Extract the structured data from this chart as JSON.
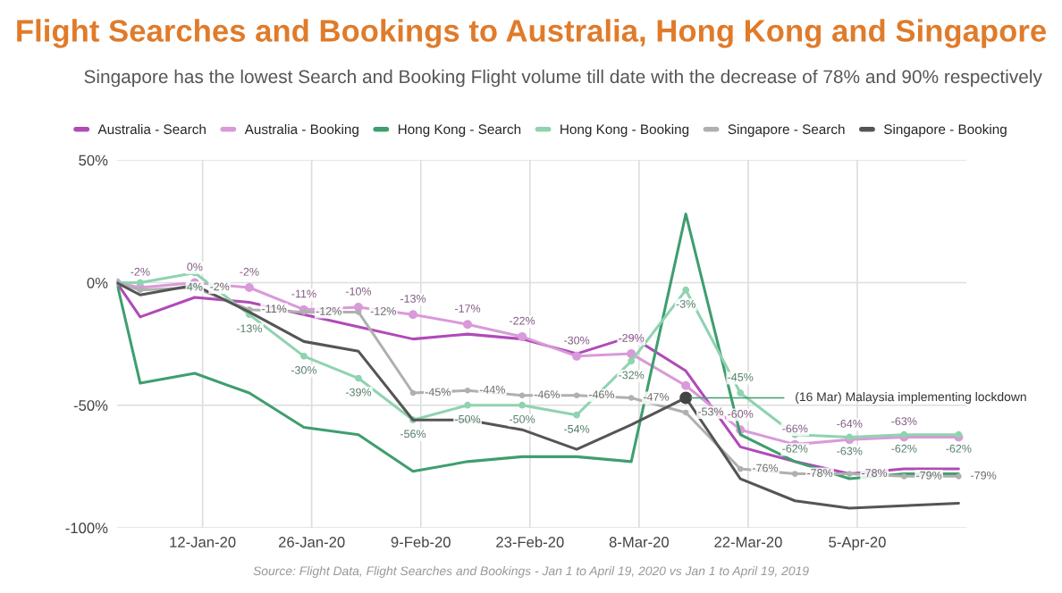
{
  "chart_data": {
    "type": "line",
    "title": "Flight Searches and Bookings to Australia, Hong Kong and Singapore",
    "subtitle": "Singapore has the lowest Search and Booking Flight volume till date with the decrease of 78% and 90% respectively",
    "x": [
      "2020-01-01",
      "2020-01-04",
      "2020-01-11",
      "2020-01-18",
      "2020-01-25",
      "2020-02-01",
      "2020-02-08",
      "2020-02-15",
      "2020-02-22",
      "2020-02-29",
      "2020-03-07",
      "2020-03-14",
      "2020-03-21",
      "2020-03-28",
      "2020-04-04",
      "2020-04-11",
      "2020-04-18"
    ],
    "series": [
      {
        "name": "Australia - Search",
        "color": "#b04ab8",
        "values": [
          0,
          -14,
          -6,
          -8,
          -13,
          -18,
          -23,
          -21,
          -23,
          -29,
          -22,
          -36,
          -67,
          -73,
          -78,
          -76,
          -76
        ]
      },
      {
        "name": "Australia - Booking",
        "color": "#d99ad9",
        "marker": "circle",
        "values": [
          0,
          -2,
          0,
          -2,
          -11,
          -10,
          -13,
          -17,
          -22,
          -30,
          -29,
          -42,
          -60,
          -66,
          -64,
          -63,
          -63
        ],
        "value_labels": [
          null,
          "-2%",
          "0%",
          "-2%",
          "-11%",
          "-10%",
          "-13%",
          "-17%",
          "-22%",
          "-30%",
          "-29%",
          null,
          "-60%",
          "-66%",
          "-64%",
          "-63%",
          null
        ]
      },
      {
        "name": "Hong Kong - Search",
        "color": "#3f9e6e",
        "values": [
          0,
          -41,
          -37,
          -45,
          -59,
          -62,
          -77,
          -73,
          -71,
          -71,
          -73,
          28,
          -62,
          -73,
          -80,
          -78,
          -78
        ]
      },
      {
        "name": "Hong Kong - Booking",
        "color": "#8fd3b0",
        "marker": "circle",
        "values": [
          0,
          0,
          4,
          -13,
          -30,
          -39,
          -56,
          -50,
          -50,
          -54,
          -32,
          -3,
          -45,
          -62,
          -63,
          -62,
          -62
        ],
        "value_labels": [
          null,
          null,
          "4%",
          "-13%",
          "-30%",
          "-39%",
          "-56%",
          "-50%",
          "-50%",
          "-54%",
          "-32%",
          "-3%",
          "-45%",
          "-62%",
          "-63%",
          "-62%",
          "-62%"
        ]
      },
      {
        "name": "Singapore - Search",
        "color": "#b0b0b0",
        "marker": "circle",
        "values": [
          0,
          -3,
          -2,
          -11,
          -12,
          -12,
          -45,
          -44,
          -46,
          -46,
          -47,
          -53,
          -76,
          -78,
          -78,
          -79,
          -79
        ],
        "value_labels": [
          null,
          null,
          "-2%",
          "-11%",
          "-12%",
          "-12%",
          "-45%",
          "-44%",
          "-46%",
          "-46%",
          "-47%",
          "-53%",
          "-76%",
          "-78%",
          "-78%",
          "-79%",
          "-79%"
        ]
      },
      {
        "name": "Singapore - Booking",
        "color": "#555555",
        "values": [
          0,
          -5,
          -1,
          -12,
          -24,
          -28,
          -56,
          -56,
          -60,
          -68,
          -58,
          -47,
          -80,
          -89,
          -92,
          -91,
          -90
        ]
      }
    ],
    "xlim": [
      "2020-01-01",
      "2020-04-19"
    ],
    "xticks": [
      {
        "value": "2020-01-12",
        "label": "12-Jan-20"
      },
      {
        "value": "2020-01-26",
        "label": "26-Jan-20"
      },
      {
        "value": "2020-02-09",
        "label": "9-Feb-20"
      },
      {
        "value": "2020-02-23",
        "label": "23-Feb-20"
      },
      {
        "value": "2020-03-08",
        "label": "8-Mar-20"
      },
      {
        "value": "2020-03-22",
        "label": "22-Mar-20"
      },
      {
        "value": "2020-04-05",
        "label": "5-Apr-20"
      }
    ],
    "ylim": [
      -100,
      50
    ],
    "yticks": [
      {
        "value": -100,
        "label": "-100%"
      },
      {
        "value": -50,
        "label": "-50%"
      },
      {
        "value": 0,
        "label": "0%"
      },
      {
        "value": 50,
        "label": "50%"
      }
    ],
    "grid": true,
    "legend": "top",
    "annotations": [
      {
        "text": "(16 Mar) Malaysia implementing lockdown",
        "x": "2020-03-14",
        "y": -47
      },
      "Source: Flight Data, Flight Searches and Bookings - Jan 1 to April 19, 2020 vs Jan 1 to April 19, 2019"
    ]
  }
}
